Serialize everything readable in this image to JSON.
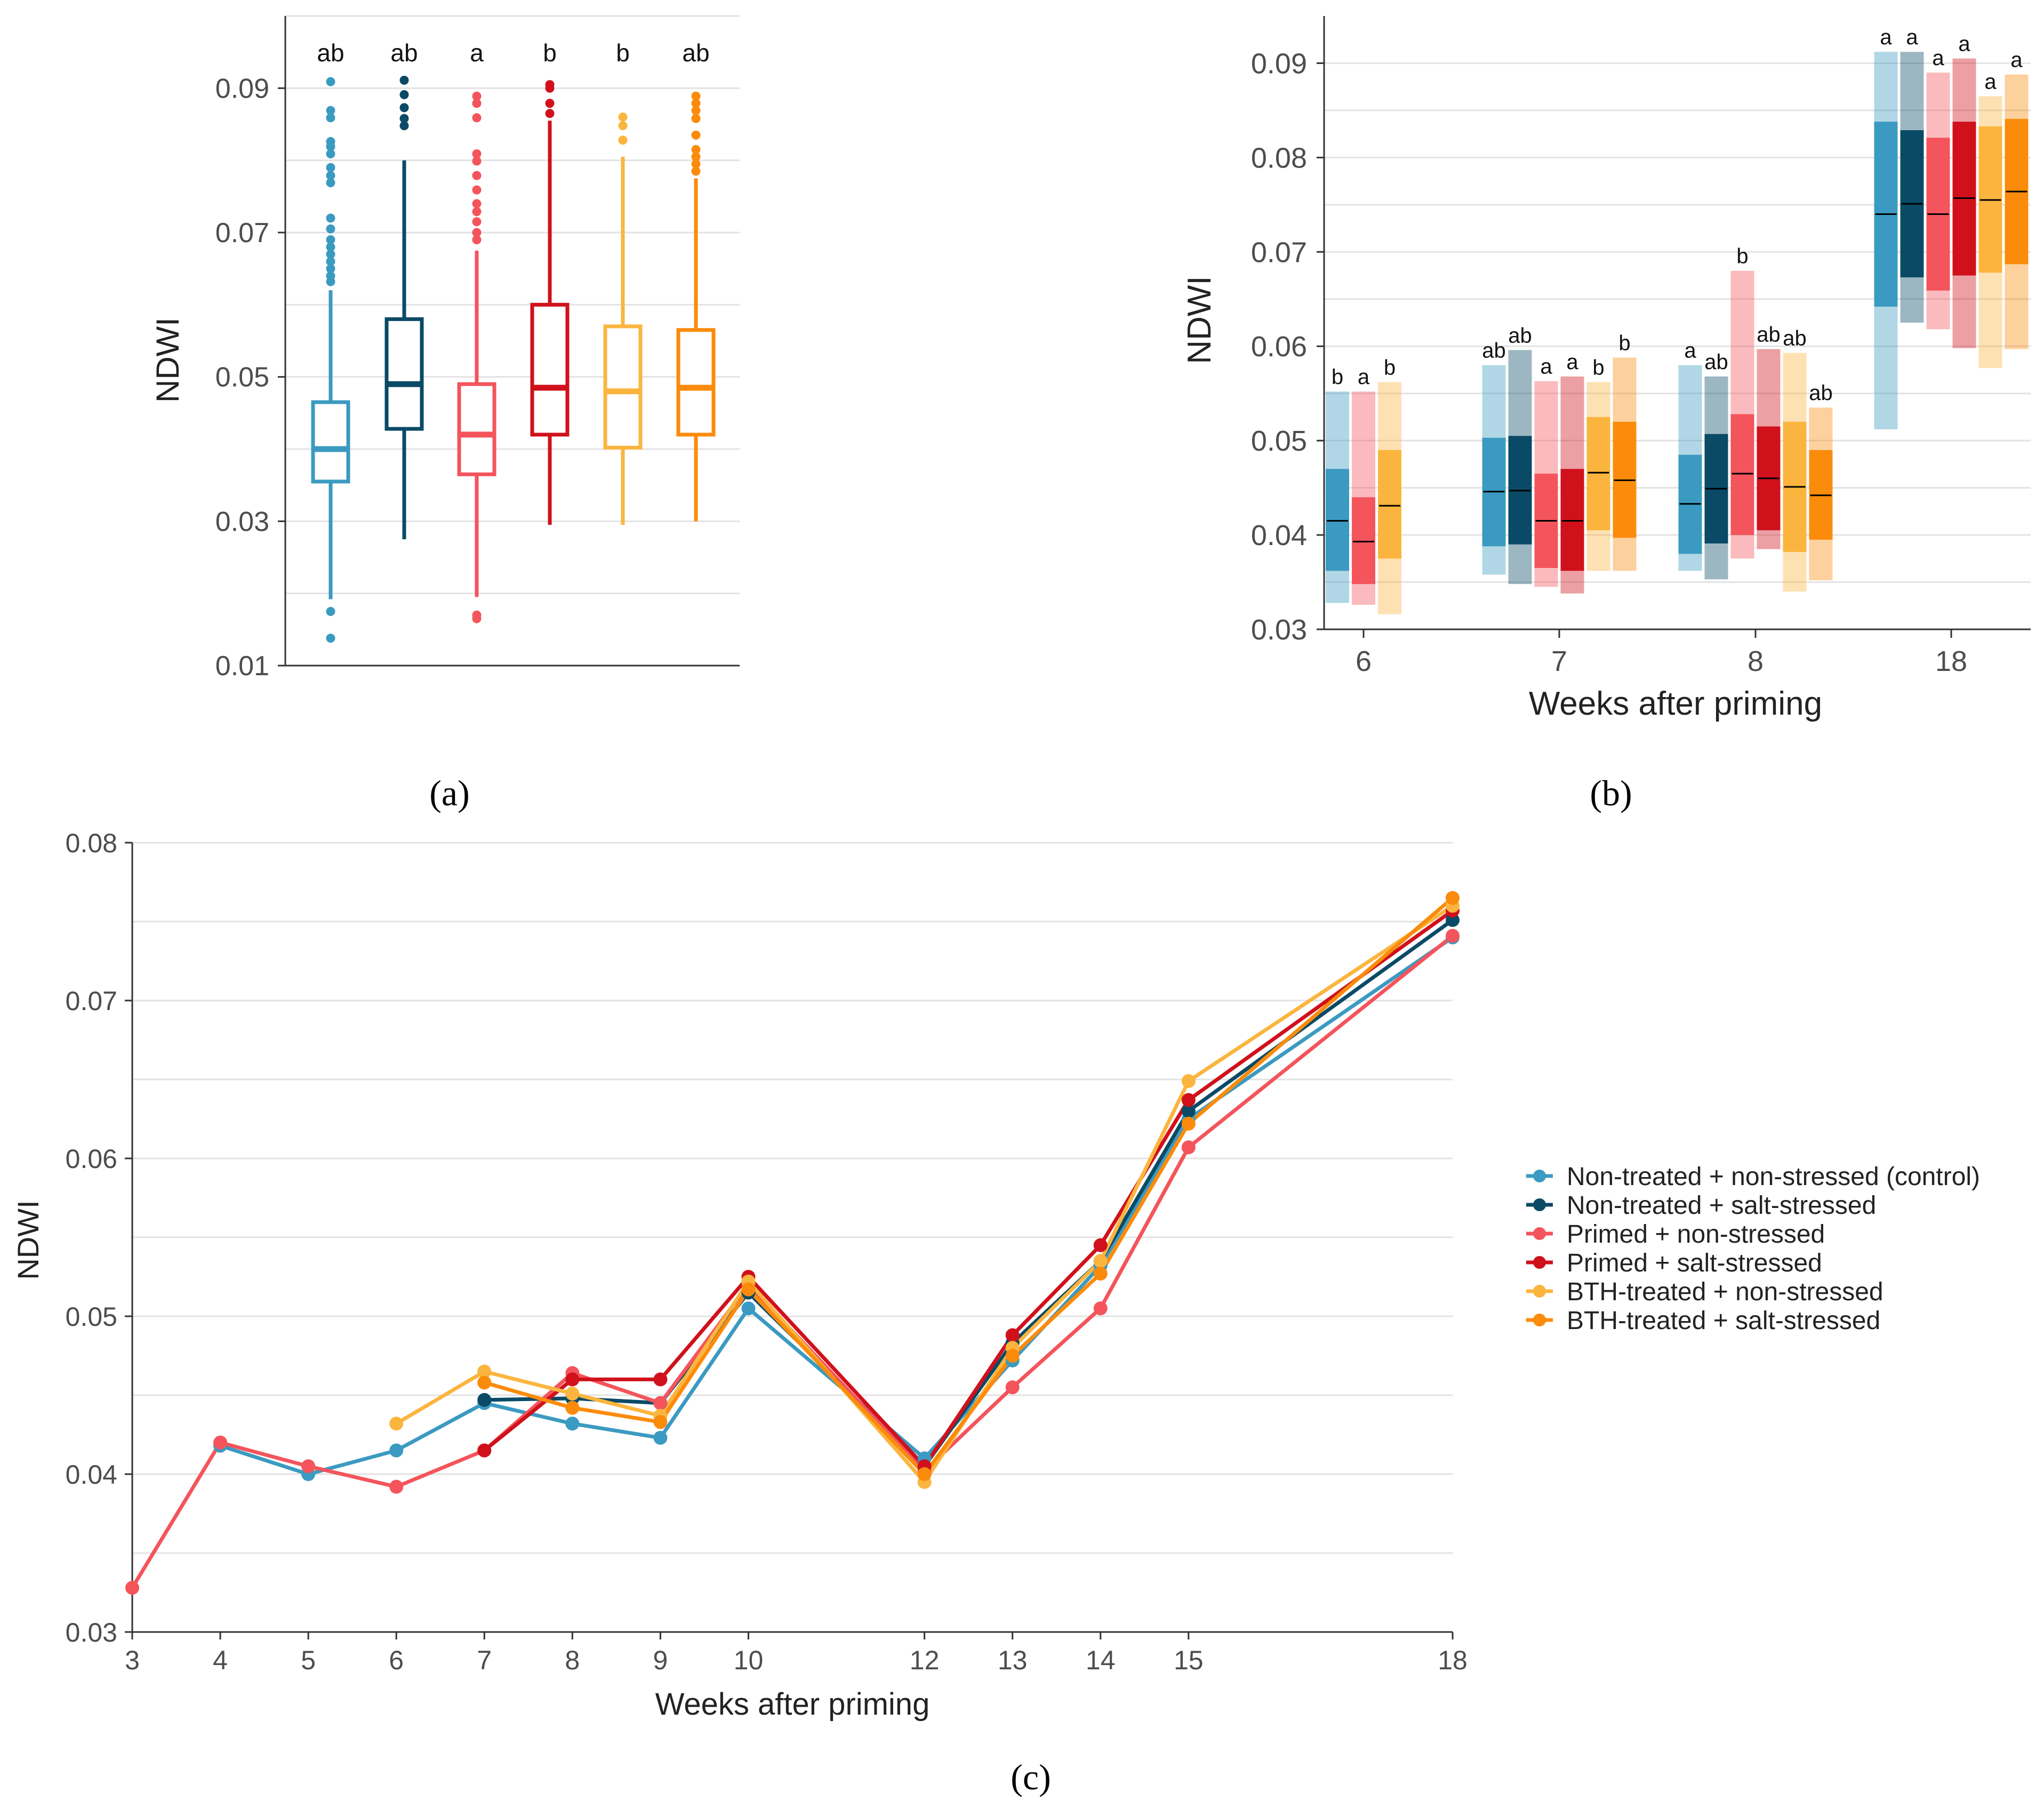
{
  "colors": {
    "grid": "#e3e3e3",
    "axis": "#333333",
    "series": [
      "#3b9ac1",
      "#0a4a66",
      "#f4545c",
      "#d0111b",
      "#fbb53e",
      "#fb8b0b"
    ]
  },
  "panel_labels": {
    "a": "(a)",
    "b": "(b)",
    "c": "(c)"
  },
  "chart_data": [
    {
      "id": "a",
      "type": "box",
      "ylabel": "NDWI",
      "xlabel": "",
      "ylim": [
        0.01,
        0.1
      ],
      "yticks": [
        "0.01",
        "0.03",
        "0.05",
        "0.07",
        "0.09"
      ],
      "groups": [
        {
          "series": 0,
          "letter": "ab",
          "whisker_low": 0.0192,
          "q1": 0.0355,
          "median": 0.04,
          "q3": 0.0465,
          "whisker_high": 0.062,
          "outliers": [
            0.0909,
            0.0869,
            0.0859,
            0.0826,
            0.0819,
            0.0809,
            0.079,
            0.0779,
            0.0769,
            0.072,
            0.0705,
            0.069,
            0.068,
            0.067,
            0.066,
            0.065,
            0.064,
            0.0632,
            0.0175,
            0.0138
          ]
        },
        {
          "series": 1,
          "letter": "ab",
          "whisker_low": 0.0275,
          "q1": 0.0428,
          "median": 0.049,
          "q3": 0.058,
          "whisker_high": 0.08,
          "outliers": [
            0.0911,
            0.0891,
            0.0873,
            0.0858,
            0.0848
          ]
        },
        {
          "series": 2,
          "letter": "a",
          "whisker_low": 0.0195,
          "q1": 0.0365,
          "median": 0.042,
          "q3": 0.049,
          "whisker_high": 0.0675,
          "outliers": [
            0.0889,
            0.0879,
            0.0859,
            0.0809,
            0.0799,
            0.0779,
            0.0759,
            0.074,
            0.0729,
            0.0715,
            0.07,
            0.069,
            0.017,
            0.0165
          ]
        },
        {
          "series": 3,
          "letter": "b",
          "whisker_low": 0.0295,
          "q1": 0.042,
          "median": 0.0485,
          "q3": 0.06,
          "whisker_high": 0.0855,
          "outliers": [
            0.0905,
            0.09,
            0.0879,
            0.0865
          ]
        },
        {
          "series": 4,
          "letter": "b",
          "whisker_low": 0.0295,
          "q1": 0.0402,
          "median": 0.048,
          "q3": 0.057,
          "whisker_high": 0.0805,
          "outliers": [
            0.086,
            0.0848,
            0.0828
          ]
        },
        {
          "series": 5,
          "letter": "ab",
          "whisker_low": 0.03,
          "q1": 0.042,
          "median": 0.0485,
          "q3": 0.0565,
          "whisker_high": 0.0775,
          "outliers": [
            0.0889,
            0.0879,
            0.0869,
            0.0858,
            0.0835,
            0.0815,
            0.0805,
            0.0795,
            0.0785
          ]
        }
      ]
    },
    {
      "id": "b",
      "type": "range-bar",
      "xlabel": "Weeks after priming",
      "ylabel": "NDWI",
      "ylim": [
        0.03,
        0.095
      ],
      "yticks": [
        "0.03",
        "0.04",
        "0.05",
        "0.06",
        "0.07",
        "0.08",
        "0.09"
      ],
      "weeks": [
        {
          "label": "6",
          "groups": [
            {
              "series": 0,
              "letter": "b",
              "min": 0.0328,
              "q1": 0.0362,
              "median": 0.0415,
              "q3": 0.047,
              "max": 0.0552
            },
            {
              "series": 2,
              "letter": "a",
              "min": 0.0326,
              "q1": 0.0348,
              "median": 0.0393,
              "q3": 0.044,
              "max": 0.0552
            },
            {
              "series": 4,
              "letter": "b",
              "min": 0.0316,
              "q1": 0.0375,
              "median": 0.0431,
              "q3": 0.049,
              "max": 0.0562
            }
          ]
        },
        {
          "label": "7",
          "groups": [
            {
              "series": 0,
              "letter": "ab",
              "min": 0.0358,
              "q1": 0.0388,
              "median": 0.0446,
              "q3": 0.0503,
              "max": 0.058
            },
            {
              "series": 1,
              "letter": "ab",
              "min": 0.0348,
              "q1": 0.039,
              "median": 0.0447,
              "q3": 0.0505,
              "max": 0.0596
            },
            {
              "series": 2,
              "letter": "a",
              "min": 0.0345,
              "q1": 0.0365,
              "median": 0.0415,
              "q3": 0.0465,
              "max": 0.0563
            },
            {
              "series": 3,
              "letter": "a",
              "min": 0.0338,
              "q1": 0.0362,
              "median": 0.0415,
              "q3": 0.047,
              "max": 0.0568
            },
            {
              "series": 4,
              "letter": "b",
              "min": 0.0362,
              "q1": 0.0405,
              "median": 0.0466,
              "q3": 0.0525,
              "max": 0.0562
            },
            {
              "series": 5,
              "letter": "b",
              "min": 0.0362,
              "q1": 0.0397,
              "median": 0.0458,
              "q3": 0.052,
              "max": 0.0588
            }
          ]
        },
        {
          "label": "8",
          "groups": [
            {
              "series": 0,
              "letter": "a",
              "min": 0.0362,
              "q1": 0.038,
              "median": 0.0433,
              "q3": 0.0485,
              "max": 0.058
            },
            {
              "series": 1,
              "letter": "ab",
              "min": 0.0353,
              "q1": 0.0391,
              "median": 0.0449,
              "q3": 0.0507,
              "max": 0.0568
            },
            {
              "series": 2,
              "letter": "b",
              "min": 0.0375,
              "q1": 0.04,
              "median": 0.0465,
              "q3": 0.0528,
              "max": 0.068
            },
            {
              "series": 3,
              "letter": "ab",
              "min": 0.0385,
              "q1": 0.0405,
              "median": 0.046,
              "q3": 0.0515,
              "max": 0.0597
            },
            {
              "series": 4,
              "letter": "ab",
              "min": 0.034,
              "q1": 0.0382,
              "median": 0.0451,
              "q3": 0.052,
              "max": 0.0593
            },
            {
              "series": 5,
              "letter": "ab",
              "min": 0.0352,
              "q1": 0.0395,
              "median": 0.0442,
              "q3": 0.049,
              "max": 0.0535
            }
          ]
        },
        {
          "label": "18",
          "groups": [
            {
              "series": 0,
              "letter": "a",
              "min": 0.0512,
              "q1": 0.0642,
              "median": 0.074,
              "q3": 0.0838,
              "max": 0.0912
            },
            {
              "series": 1,
              "letter": "a",
              "min": 0.0625,
              "q1": 0.0673,
              "median": 0.0751,
              "q3": 0.0829,
              "max": 0.0912
            },
            {
              "series": 2,
              "letter": "a",
              "min": 0.0618,
              "q1": 0.0659,
              "median": 0.074,
              "q3": 0.0821,
              "max": 0.089
            },
            {
              "series": 3,
              "letter": "a",
              "min": 0.0598,
              "q1": 0.0675,
              "median": 0.0757,
              "q3": 0.0838,
              "max": 0.0905
            },
            {
              "series": 4,
              "letter": "a",
              "min": 0.0577,
              "q1": 0.0678,
              "median": 0.0755,
              "q3": 0.0833,
              "max": 0.0865
            },
            {
              "series": 5,
              "letter": "a",
              "min": 0.0597,
              "q1": 0.0687,
              "median": 0.0764,
              "q3": 0.0841,
              "max": 0.0888
            }
          ]
        }
      ]
    },
    {
      "id": "c",
      "type": "line",
      "xlabel": "Weeks after priming",
      "ylabel": "NDWI",
      "xlim": [
        3,
        18
      ],
      "ylim": [
        0.03,
        0.08
      ],
      "xticks": [
        "3",
        "4",
        "5",
        "6",
        "7",
        "8",
        "9",
        "10",
        "12",
        "13",
        "14",
        "15",
        "18"
      ],
      "yticks": [
        "0.03",
        "0.04",
        "0.05",
        "0.06",
        "0.07",
        "0.08"
      ],
      "series": [
        {
          "name": "Non-treated + non-stressed (control)",
          "color": "#3b9ac1",
          "x": [
            4,
            5,
            6,
            7,
            8,
            9,
            10,
            12,
            13,
            14,
            15,
            18
          ],
          "y": [
            0.0418,
            0.04,
            0.0415,
            0.0445,
            0.0432,
            0.0423,
            0.0505,
            0.041,
            0.0472,
            0.0532,
            0.0625,
            0.074
          ]
        },
        {
          "name": "Non-treated + salt-stressed",
          "color": "#0a4a66",
          "x": [
            7,
            8,
            9,
            10,
            12,
            13,
            14,
            15,
            18
          ],
          "y": [
            0.0447,
            0.0448,
            0.0445,
            0.0515,
            0.0405,
            0.0483,
            0.0535,
            0.063,
            0.0751
          ]
        },
        {
          "name": "Primed + non-stressed",
          "color": "#f4545c",
          "x": [
            3,
            4,
            5,
            6,
            7,
            8,
            9,
            10,
            12,
            13,
            14,
            15,
            18
          ],
          "y": [
            0.0328,
            0.042,
            0.0405,
            0.0392,
            0.0415,
            0.0464,
            0.0445,
            0.052,
            0.0402,
            0.0455,
            0.0505,
            0.0607,
            0.0741
          ]
        },
        {
          "name": "Primed + salt-stressed",
          "color": "#d0111b",
          "x": [
            7,
            8,
            9,
            10,
            12,
            13,
            14,
            15,
            18
          ],
          "y": [
            0.0415,
            0.046,
            0.046,
            0.0525,
            0.0405,
            0.0488,
            0.0545,
            0.0637,
            0.0757
          ]
        },
        {
          "name": "BTH-treated + non-stressed",
          "color": "#fbb53e",
          "x": [
            6,
            7,
            8,
            9,
            10,
            12,
            13,
            14,
            15,
            18
          ],
          "y": [
            0.0432,
            0.0465,
            0.0451,
            0.0437,
            0.0522,
            0.0395,
            0.048,
            0.0535,
            0.0649,
            0.076
          ]
        },
        {
          "name": "BTH-treated + salt-stressed",
          "color": "#fb8b0b",
          "x": [
            7,
            8,
            9,
            10,
            12,
            13,
            14,
            15,
            18
          ],
          "y": [
            0.0458,
            0.0442,
            0.0433,
            0.0517,
            0.04,
            0.0475,
            0.0527,
            0.0622,
            0.0765
          ]
        }
      ],
      "legend": {
        "placement": "right"
      }
    }
  ]
}
